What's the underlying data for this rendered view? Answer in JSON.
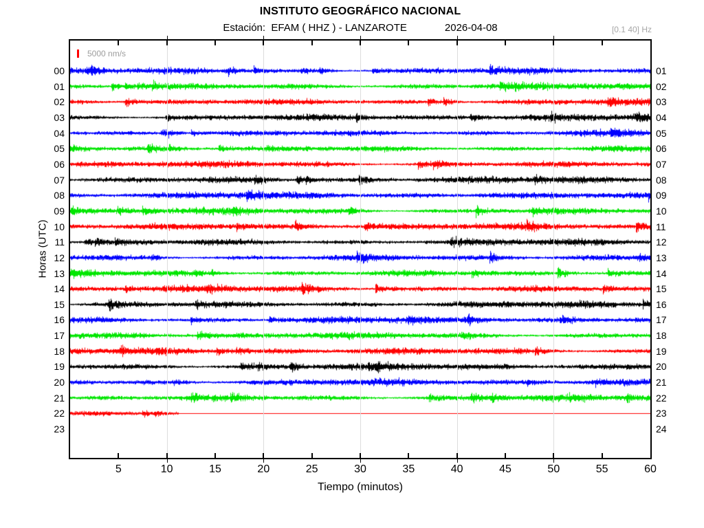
{
  "chart_data": {
    "type": "helicorder-seismogram",
    "title": "INSTITUTO GEOGRÁFICO NACIONAL",
    "station_label": "Estación:",
    "station": "EFAM ( HHZ ) - LANZAROTE",
    "date": "2026-04-08",
    "filter_band": "[0.1 40] Hz",
    "scale_legend": "5000 nm/s",
    "xlabel": "Tiempo (minutos)",
    "ylabel": "Horas (UTC)",
    "x_range_minutes": [
      0,
      60
    ],
    "x_tick_labels": [
      5,
      10,
      15,
      20,
      25,
      30,
      35,
      40,
      45,
      50,
      55,
      60
    ],
    "x_minor_tick_step_minutes": 5,
    "x_grid_minutes": [
      10,
      20,
      30,
      40,
      50
    ],
    "grid_color": "#dcdcdc",
    "trace_colors": {
      "blue": "#0000ff",
      "green": "#00e600",
      "red": "#ff0000",
      "black": "#000000"
    },
    "rows": [
      {
        "hour_left": "00",
        "hour_right": "01",
        "color": "blue",
        "start_min": 0,
        "end_min": 60
      },
      {
        "hour_left": "01",
        "hour_right": "02",
        "color": "green",
        "start_min": 0,
        "end_min": 60
      },
      {
        "hour_left": "02",
        "hour_right": "03",
        "color": "red",
        "start_min": 0,
        "end_min": 60
      },
      {
        "hour_left": "03",
        "hour_right": "04",
        "color": "black",
        "start_min": 0,
        "end_min": 60
      },
      {
        "hour_left": "04",
        "hour_right": "05",
        "color": "blue",
        "start_min": 0,
        "end_min": 60
      },
      {
        "hour_left": "05",
        "hour_right": "06",
        "color": "green",
        "start_min": 0,
        "end_min": 60
      },
      {
        "hour_left": "06",
        "hour_right": "07",
        "color": "red",
        "start_min": 0,
        "end_min": 60
      },
      {
        "hour_left": "07",
        "hour_right": "08",
        "color": "black",
        "start_min": 0,
        "end_min": 60
      },
      {
        "hour_left": "08",
        "hour_right": "09",
        "color": "blue",
        "start_min": 0,
        "end_min": 60
      },
      {
        "hour_left": "09",
        "hour_right": "10",
        "color": "green",
        "start_min": 0,
        "end_min": 60
      },
      {
        "hour_left": "10",
        "hour_right": "11",
        "color": "red",
        "start_min": 0,
        "end_min": 60
      },
      {
        "hour_left": "11",
        "hour_right": "12",
        "color": "black",
        "start_min": 0,
        "end_min": 60
      },
      {
        "hour_left": "12",
        "hour_right": "13",
        "color": "blue",
        "start_min": 0,
        "end_min": 60
      },
      {
        "hour_left": "13",
        "hour_right": "14",
        "color": "green",
        "start_min": 0,
        "end_min": 60
      },
      {
        "hour_left": "14",
        "hour_right": "15",
        "color": "red",
        "start_min": 0,
        "end_min": 60
      },
      {
        "hour_left": "15",
        "hour_right": "16",
        "color": "black",
        "start_min": 0,
        "end_min": 60
      },
      {
        "hour_left": "16",
        "hour_right": "17",
        "color": "blue",
        "start_min": 0,
        "end_min": 60
      },
      {
        "hour_left": "17",
        "hour_right": "18",
        "color": "green",
        "start_min": 0,
        "end_min": 60
      },
      {
        "hour_left": "18",
        "hour_right": "19",
        "color": "red",
        "start_min": 0,
        "end_min": 60
      },
      {
        "hour_left": "19",
        "hour_right": "20",
        "color": "black",
        "start_min": 0,
        "end_min": 60
      },
      {
        "hour_left": "20",
        "hour_right": "21",
        "color": "blue",
        "start_min": 0,
        "end_min": 60
      },
      {
        "hour_left": "21",
        "hour_right": "22",
        "color": "green",
        "start_min": 0,
        "end_min": 60
      },
      {
        "hour_left": "22",
        "hour_right": "23",
        "color": "red",
        "start_min": 0,
        "end_min": 11.2,
        "flat_line_to_end": true
      },
      {
        "hour_left": "23",
        "hour_right": "24",
        "color": null,
        "start_min": 0,
        "end_min": 0
      }
    ]
  }
}
